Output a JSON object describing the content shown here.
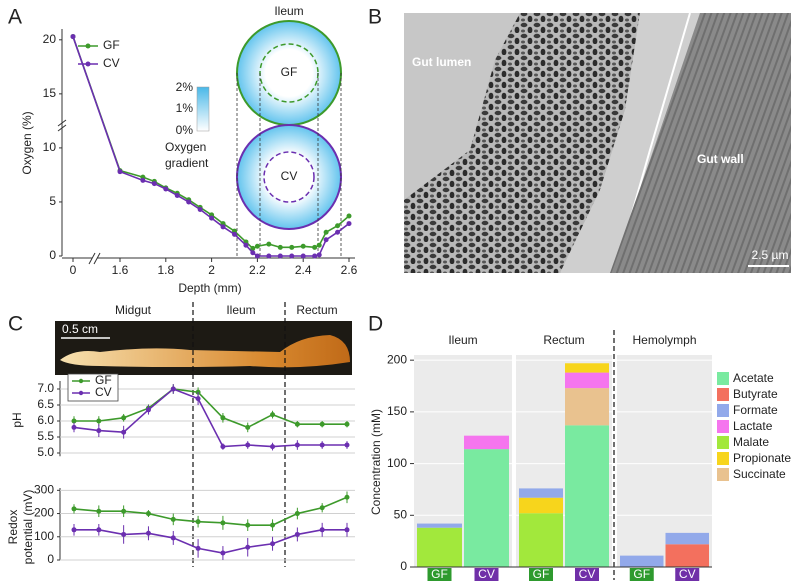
{
  "chart_data": [
    {
      "type": "line",
      "panel": "A",
      "x_label": "Depth (mm)",
      "y_label": "Oxygen (%)",
      "x": [
        0,
        1.6,
        1.7,
        1.75,
        1.8,
        1.85,
        1.9,
        1.95,
        2.0,
        2.05,
        2.1,
        2.15,
        2.18,
        2.2,
        2.25,
        2.3,
        2.35,
        2.4,
        2.45,
        2.47,
        2.5,
        2.55,
        2.6
      ],
      "series": [
        {
          "name": "GF",
          "color": "#3d9a2b",
          "values": [
            20.3,
            7.9,
            7.3,
            6.9,
            6.3,
            5.8,
            5.2,
            4.5,
            3.8,
            3.0,
            2.3,
            1.3,
            0.7,
            0.9,
            1.1,
            0.8,
            0.8,
            0.9,
            0.8,
            1.0,
            2.2,
            2.8,
            3.7
          ]
        },
        {
          "name": "CV",
          "color": "#6b2fb0",
          "values": [
            20.3,
            7.8,
            7.0,
            6.7,
            6.2,
            5.6,
            5.0,
            4.3,
            3.5,
            2.7,
            2.0,
            1.0,
            0.3,
            0,
            0,
            0,
            0,
            0,
            0,
            0.1,
            1.5,
            2.2,
            3.0
          ]
        }
      ],
      "xlim": [
        0,
        2.6
      ],
      "xticks": [
        0,
        1.6,
        1.8,
        2,
        2.2,
        2.4,
        2.6
      ],
      "ylim": [
        0,
        21
      ],
      "yticks": [
        0,
        5,
        10,
        15,
        20
      ],
      "inset_title": "Ileum",
      "inset_labels": [
        "GF",
        "CV"
      ],
      "gradient_labels": [
        "2%",
        "1%",
        "0%"
      ],
      "gradient_title": [
        "Oxygen",
        "gradient"
      ]
    },
    {
      "type": "image",
      "panel": "B",
      "labels": [
        "Gut lumen",
        "Gut wall"
      ],
      "scale_bar": "2.5 µm"
    },
    {
      "type": "line",
      "panel": "C",
      "regions": [
        "Midgut",
        "Ileum",
        "Rectum"
      ],
      "photo_scale": "0.5 cm",
      "y_label": "pH",
      "categories": [
        null,
        null,
        null,
        null,
        null,
        null,
        null,
        null,
        null,
        null,
        null,
        null
      ],
      "series": [
        {
          "name": "GF",
          "color": "#3d9a2b",
          "values": [
            6.0,
            6.0,
            6.1,
            6.4,
            7.0,
            6.9,
            6.1,
            5.8,
            6.2,
            5.9,
            5.9,
            5.9
          ],
          "errors": [
            0.15,
            0.15,
            0.12,
            0.12,
            0.15,
            0.15,
            0.15,
            0.15,
            0.12,
            0.1,
            0.1,
            0.1
          ]
        },
        {
          "name": "CV",
          "color": "#6b2fb0",
          "values": [
            5.8,
            5.7,
            5.65,
            6.35,
            7.0,
            6.7,
            5.2,
            5.25,
            5.2,
            5.25,
            5.25,
            5.25
          ],
          "errors": [
            0.15,
            0.2,
            0.2,
            0.15,
            0.15,
            0.2,
            0.1,
            0.12,
            0.12,
            0.15,
            0.12,
            0.12
          ]
        }
      ],
      "ylim": [
        4.9,
        7.25
      ],
      "yticks": [
        {
          "value": 5,
          "label": "5.0"
        },
        {
          "value": 5.5,
          "label": "5.5"
        },
        {
          "value": 6,
          "label": "6.0"
        },
        {
          "value": 6.5,
          "label": "6.5"
        },
        {
          "value": 7,
          "label": "7.0"
        }
      ],
      "grid": true
    },
    {
      "type": "line",
      "y_label": [
        "Redox",
        "potential (mV)"
      ],
      "categories": [
        null,
        null,
        null,
        null,
        null,
        null,
        null,
        null,
        null,
        null,
        null,
        null
      ],
      "series": [
        {
          "color": "#3d9a2b",
          "values": [
            220,
            210,
            210,
            200,
            175,
            165,
            160,
            150,
            150,
            200,
            225,
            270
          ],
          "errors": [
            20,
            25,
            25,
            15,
            25,
            25,
            30,
            25,
            25,
            25,
            20,
            25
          ]
        },
        {
          "color": "#6b2fb0",
          "values": [
            130,
            130,
            110,
            115,
            95,
            50,
            30,
            55,
            70,
            110,
            130,
            130
          ],
          "errors": [
            25,
            25,
            40,
            30,
            30,
            40,
            30,
            40,
            30,
            30,
            30,
            30
          ]
        }
      ],
      "ylim": [
        0,
        310
      ],
      "yticks": [
        0,
        100,
        200,
        300
      ],
      "grid": true
    },
    {
      "type": "bar",
      "stacked": true,
      "panel": "D",
      "y_label": "Concentration (mM)",
      "facets": [
        "Ileum",
        "Rectum",
        "Hemolymph"
      ],
      "categories": [
        "GF",
        "CV",
        "GF",
        "CV",
        "GF",
        "CV"
      ],
      "category_colors": [
        "#2e9a2e",
        "#7030a8",
        "#2e9a2e",
        "#7030a8",
        "#2e9a2e",
        "#7030a8"
      ],
      "series": [
        {
          "name": "Acetate",
          "color": "#79eaa0",
          "values": [
            0,
            114,
            0,
            137,
            0,
            0
          ]
        },
        {
          "name": "Butyrate",
          "color": "#f3705e",
          "values": [
            0,
            0,
            0,
            0,
            0,
            22
          ]
        },
        {
          "name": "Formate",
          "color": "#92a9ea",
          "values": [
            4,
            0,
            9,
            0,
            11,
            11
          ]
        },
        {
          "name": "Lactate",
          "color": "#f575ee",
          "values": [
            0,
            13,
            0,
            15,
            0,
            0
          ]
        },
        {
          "name": "Malate",
          "color": "#a2e83c",
          "values": [
            38,
            0,
            52,
            0,
            0,
            0
          ]
        },
        {
          "name": "Propionate",
          "color": "#f7d51c",
          "values": [
            0,
            0,
            15,
            9,
            0,
            0
          ]
        },
        {
          "name": "Succinate",
          "color": "#e9c28f",
          "values": [
            0,
            0,
            0,
            36,
            0,
            0
          ]
        }
      ],
      "ylim": [
        0,
        205
      ],
      "yticks": [
        0,
        50,
        100,
        150,
        200
      ]
    }
  ]
}
